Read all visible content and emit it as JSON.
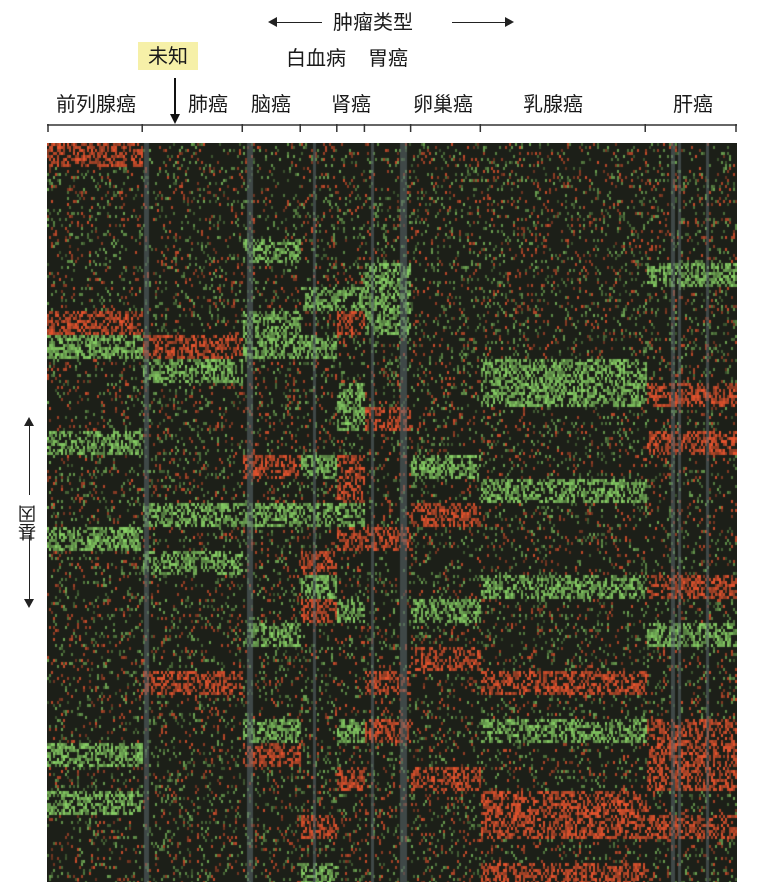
{
  "header": {
    "title": "肿瘤类型",
    "unknown_label": "未知",
    "gene_label": "基因"
  },
  "chart_data": {
    "type": "heatmap",
    "title": "肿瘤类型",
    "ylabel": "基因",
    "tumor_groups": [
      {
        "label": "前列腺癌",
        "start": 0.0,
        "end": 0.138
      },
      {
        "label": "肺癌",
        "start": 0.138,
        "end": 0.283
      },
      {
        "label": "脑癌",
        "start": 0.283,
        "end": 0.367
      },
      {
        "label": "白血病",
        "start": 0.367,
        "end": 0.42
      },
      {
        "label": "肾癌",
        "start": 0.42,
        "end": 0.46
      },
      {
        "label": "胃癌",
        "start": 0.46,
        "end": 0.527
      },
      {
        "label": "卵巢癌",
        "start": 0.527,
        "end": 0.628
      },
      {
        "label": "乳腺癌",
        "start": 0.628,
        "end": 0.867
      },
      {
        "label": "肝癌",
        "start": 0.867,
        "end": 1.0
      }
    ],
    "colors": {
      "up": "#e8542e",
      "down": "#8fdc6a",
      "neutral": "#1c1f18",
      "missing": "#5d6a70"
    }
  }
}
